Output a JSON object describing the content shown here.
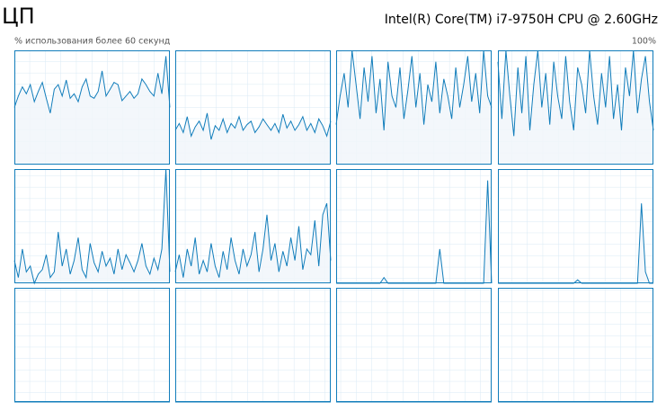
{
  "header": {
    "title": "ЦП",
    "cpu_name": "Intel(R) Core(TM) i7-9750H CPU @ 2.60GHz",
    "axis_label": "% использования более 60 секунд",
    "axis_max_label": "100%"
  },
  "chart_data": [
    {
      "type": "line",
      "ylim": [
        0,
        100
      ],
      "color": "#117dbb",
      "values": [
        50,
        60,
        68,
        62,
        70,
        55,
        64,
        72,
        58,
        45,
        66,
        70,
        60,
        74,
        58,
        62,
        55,
        68,
        75,
        60,
        58,
        64,
        82,
        60,
        66,
        72,
        70,
        56,
        60,
        64,
        58,
        62,
        75,
        70,
        64,
        60,
        80,
        62,
        95,
        50
      ]
    },
    {
      "type": "line",
      "ylim": [
        0,
        100
      ],
      "color": "#117dbb",
      "values": [
        30,
        36,
        28,
        42,
        25,
        33,
        38,
        30,
        45,
        22,
        34,
        30,
        40,
        28,
        36,
        32,
        42,
        30,
        35,
        38,
        28,
        33,
        40,
        35,
        30,
        36,
        28,
        44,
        32,
        38,
        30,
        35,
        42,
        30,
        36,
        28,
        40,
        34,
        25,
        38
      ]
    },
    {
      "type": "line",
      "ylim": [
        0,
        100
      ],
      "color": "#117dbb",
      "values": [
        35,
        60,
        80,
        50,
        100,
        70,
        40,
        85,
        55,
        95,
        45,
        75,
        30,
        90,
        60,
        50,
        85,
        40,
        65,
        95,
        50,
        80,
        35,
        70,
        55,
        90,
        45,
        75,
        60,
        40,
        85,
        50,
        70,
        95,
        55,
        80,
        45,
        100,
        60,
        50
      ]
    },
    {
      "type": "line",
      "ylim": [
        0,
        100
      ],
      "color": "#117dbb",
      "values": [
        90,
        40,
        100,
        60,
        25,
        85,
        45,
        95,
        30,
        70,
        100,
        50,
        80,
        35,
        90,
        60,
        40,
        95,
        55,
        30,
        85,
        70,
        45,
        100,
        60,
        35,
        80,
        50,
        95,
        40,
        70,
        30,
        85,
        60,
        100,
        45,
        75,
        95,
        55,
        30
      ]
    },
    {
      "type": "line",
      "ylim": [
        0,
        100
      ],
      "color": "#117dbb",
      "values": [
        20,
        5,
        30,
        10,
        15,
        0,
        8,
        12,
        25,
        5,
        10,
        45,
        15,
        30,
        8,
        20,
        40,
        12,
        5,
        35,
        18,
        10,
        28,
        15,
        22,
        8,
        30,
        12,
        25,
        18,
        10,
        20,
        35,
        15,
        8,
        22,
        12,
        30,
        100,
        10
      ]
    },
    {
      "type": "line",
      "ylim": [
        0,
        100
      ],
      "color": "#117dbb",
      "values": [
        10,
        25,
        5,
        30,
        15,
        40,
        8,
        20,
        10,
        35,
        15,
        5,
        28,
        12,
        40,
        20,
        8,
        30,
        15,
        25,
        45,
        10,
        30,
        60,
        20,
        35,
        10,
        28,
        15,
        40,
        20,
        50,
        12,
        30,
        25,
        55,
        15,
        60,
        70,
        20
      ]
    },
    {
      "type": "line",
      "ylim": [
        0,
        100
      ],
      "color": "#117dbb",
      "values": [
        0,
        0,
        0,
        0,
        0,
        0,
        0,
        0,
        0,
        0,
        0,
        0,
        5,
        0,
        0,
        0,
        0,
        0,
        0,
        0,
        0,
        0,
        0,
        0,
        0,
        0,
        30,
        0,
        0,
        0,
        0,
        0,
        0,
        0,
        0,
        0,
        0,
        0,
        90,
        0
      ]
    },
    {
      "type": "line",
      "ylim": [
        0,
        100
      ],
      "color": "#117dbb",
      "values": [
        0,
        0,
        0,
        0,
        0,
        0,
        0,
        0,
        0,
        0,
        0,
        0,
        0,
        0,
        0,
        0,
        0,
        0,
        0,
        0,
        3,
        0,
        0,
        0,
        0,
        0,
        0,
        0,
        0,
        0,
        0,
        0,
        0,
        0,
        0,
        0,
        70,
        10,
        0,
        0
      ]
    },
    {
      "type": "line",
      "ylim": [
        0,
        100
      ],
      "color": "#117dbb",
      "values": [
        0,
        0,
        0,
        0,
        0,
        0,
        0,
        0,
        0,
        0,
        0,
        0,
        0,
        0,
        0,
        0,
        0,
        0,
        0,
        0,
        0,
        0,
        0,
        0,
        0,
        0,
        0,
        0,
        0,
        0,
        0,
        0,
        0,
        0,
        0,
        0,
        0,
        0,
        0,
        0
      ]
    },
    {
      "type": "line",
      "ylim": [
        0,
        100
      ],
      "color": "#117dbb",
      "values": [
        0,
        0,
        0,
        0,
        0,
        0,
        0,
        0,
        0,
        0,
        0,
        0,
        0,
        0,
        0,
        0,
        0,
        0,
        0,
        0,
        0,
        0,
        0,
        0,
        0,
        0,
        0,
        0,
        0,
        0,
        0,
        0,
        0,
        0,
        0,
        0,
        0,
        0,
        0,
        0
      ]
    },
    {
      "type": "line",
      "ylim": [
        0,
        100
      ],
      "color": "#117dbb",
      "values": [
        0,
        0,
        0,
        0,
        0,
        0,
        0,
        0,
        0,
        0,
        0,
        0,
        0,
        0,
        0,
        0,
        0,
        0,
        0,
        0,
        0,
        0,
        0,
        0,
        0,
        0,
        0,
        0,
        0,
        0,
        0,
        0,
        0,
        0,
        0,
        0,
        0,
        0,
        0,
        0
      ]
    },
    {
      "type": "line",
      "ylim": [
        0,
        100
      ],
      "color": "#117dbb",
      "values": [
        0,
        0,
        0,
        0,
        0,
        0,
        0,
        0,
        0,
        0,
        0,
        0,
        0,
        0,
        0,
        0,
        0,
        0,
        0,
        0,
        0,
        0,
        0,
        0,
        0,
        0,
        0,
        0,
        0,
        0,
        0,
        0,
        0,
        0,
        0,
        0,
        0,
        0,
        0,
        0
      ]
    }
  ]
}
